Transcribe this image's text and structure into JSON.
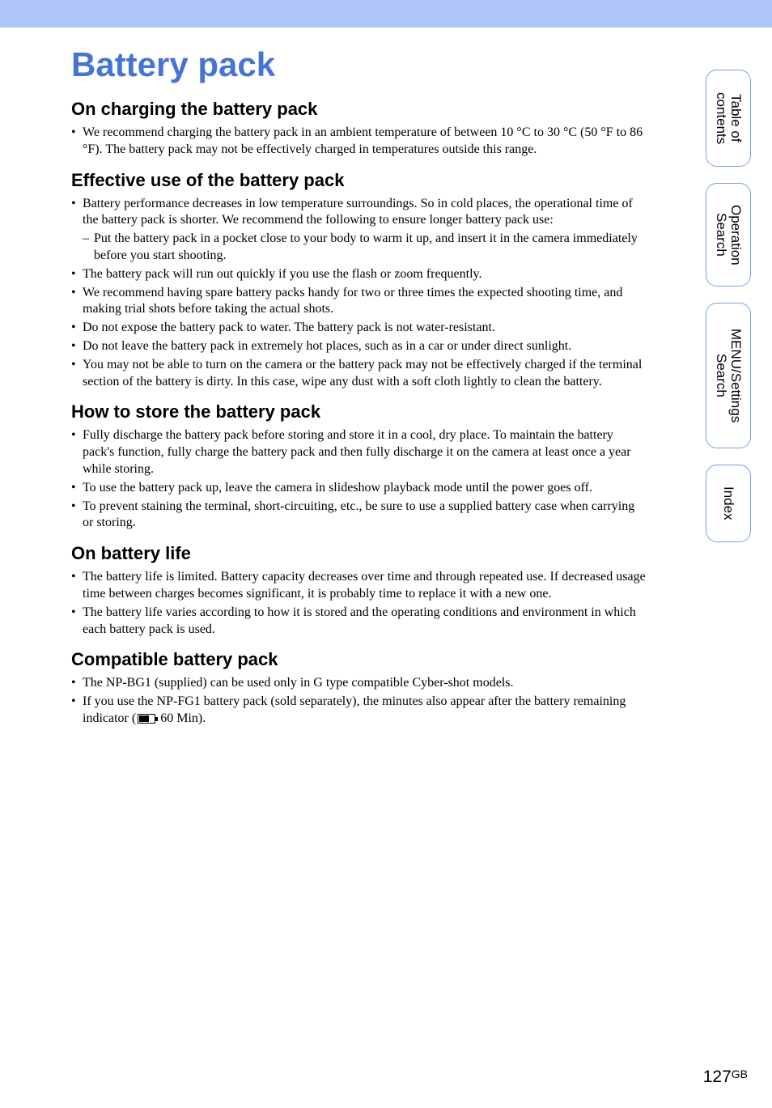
{
  "colors": {
    "topbar": "#adc5f7",
    "title": "#4575d4",
    "tabBorder": "#7aa0e8",
    "text": "#000000",
    "background": "#ffffff"
  },
  "pageTitle": "Battery pack",
  "sections": {
    "charging": {
      "title": "On charging the battery pack",
      "items": [
        "We recommend charging the battery pack in an ambient temperature of between 10 °C to 30 °C (50 °F to 86 °F). The battery pack may not be effectively charged in temperatures outside this range."
      ]
    },
    "effective": {
      "title": "Effective use of the battery pack",
      "items": [
        "Battery performance decreases in low temperature surroundings. So in cold places, the operational time of the battery pack is shorter. We recommend the following to ensure longer battery pack use:",
        "The battery pack will run out quickly if you use the flash or zoom frequently.",
        "We recommend having spare battery packs handy for two or three times the expected shooting time, and making trial shots before taking the actual shots.",
        "Do not expose the battery pack to water. The battery pack is not water-resistant.",
        "Do not leave the battery pack in extremely hot places, such as in a car or under direct sunlight.",
        "You may not be able to turn on the camera or the battery pack may not be effectively charged if the terminal section of the battery is dirty. In this case, wipe any dust with a soft cloth lightly to clean the battery."
      ],
      "subitems": [
        "Put the battery pack in a pocket close to your body to warm it up, and insert it in the camera immediately before you start shooting."
      ]
    },
    "store": {
      "title": "How to store the battery pack",
      "items": [
        "Fully discharge the battery pack before storing and store it in a cool, dry place. To maintain the battery pack's function, fully charge the battery pack and then fully discharge it on the camera at least once a year while storing.",
        "To use the battery pack up, leave the camera in slideshow playback mode until the power goes off.",
        "To prevent staining the terminal, short-circuiting, etc., be sure to use a supplied battery case when carrying or storing."
      ]
    },
    "life": {
      "title": "On battery life",
      "items": [
        "The battery life is limited. Battery capacity decreases over time and through repeated use. If decreased usage time between charges becomes significant, it is probably time to replace it with a new one.",
        "The battery life varies according to how it is stored and the operating conditions and environment in which each battery pack is used."
      ]
    },
    "compat": {
      "title": "Compatible battery pack",
      "item0": "The NP-BG1 (supplied) can be used only in G type compatible Cyber-shot models.",
      "item1_pre": "If you use the NP-FG1 battery pack (sold separately), the minutes also appear after the battery remaining indicator (",
      "item1_post": " 60 Min)."
    }
  },
  "tabs": {
    "toc_l1": "Table of",
    "toc_l2": "contents",
    "op_l1": "Operation",
    "op_l2": "Search",
    "menu_l1": "MENU/Settings",
    "menu_l2": "Search",
    "index": "Index"
  },
  "footer": {
    "page": "127",
    "region": "GB"
  }
}
